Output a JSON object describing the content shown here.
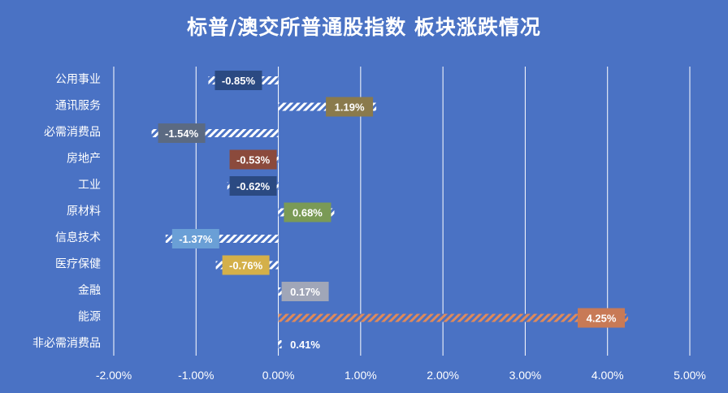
{
  "chart_data": {
    "type": "bar",
    "orientation": "horizontal",
    "title": "标普/澳交所普通股指数 板块涨跌情况",
    "categories": [
      "公用事业",
      "通讯服务",
      "必需消费品",
      "房地产",
      "工业",
      "原材料",
      "信息技术",
      "医疗保健",
      "金融",
      "能源",
      "非必需消费品"
    ],
    "values": [
      -0.85,
      1.19,
      -1.54,
      -0.53,
      -0.62,
      0.68,
      -1.37,
      -0.76,
      0.17,
      4.25,
      0.41
    ],
    "data_labels": [
      "-0.85%",
      "1.19%",
      "-1.54%",
      "-0.53%",
      "-0.62%",
      "0.68%",
      "-1.37%",
      "-0.76%",
      "0.17%",
      "4.25%",
      "0.41%"
    ],
    "label_colors": [
      "#2b4a82",
      "#8a7a4c",
      "#5b6a82",
      "#8b4a3c",
      "#2b4a82",
      "#7a9a56",
      "#6a9fd6",
      "#d4b04a",
      "#a0a6b8",
      "#c87a56",
      "#4a72c4"
    ],
    "bar_pattern": "diagonal-hatch",
    "bar_color": "#ffffff",
    "energy_bar_color": "#e08a5a",
    "xlim": [
      -2,
      5
    ],
    "xticks": [
      "-2.00%",
      "-1.00%",
      "0.00%",
      "1.00%",
      "2.00%",
      "3.00%",
      "4.00%",
      "5.00%"
    ],
    "grid": true,
    "xlabel": "",
    "ylabel": "",
    "background_color": "#4a72c4",
    "grid_color": "#ffffff"
  }
}
